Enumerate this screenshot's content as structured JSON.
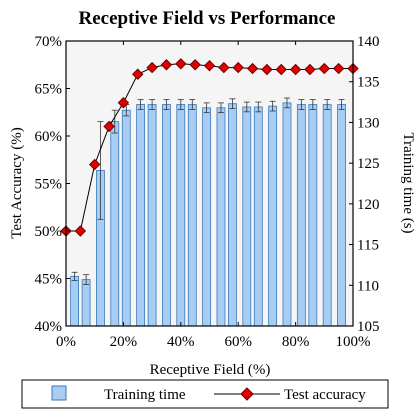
{
  "chart_data": {
    "type": "bar",
    "title": "Receptive Field vs Performance",
    "xlabel": "Receptive Field (%)",
    "ylabel_left": "Test Accuracy (%)",
    "ylabel_right": "Training time (s)",
    "x_ticks": [
      "0%",
      "20%",
      "40%",
      "60%",
      "80%",
      "100%"
    ],
    "x_tick_values": [
      0,
      20,
      40,
      60,
      80,
      100
    ],
    "y_left_ticks": [
      "40%",
      "45%",
      "50%",
      "55%",
      "60%",
      "65%",
      "70%"
    ],
    "y_left_tick_values": [
      40,
      45,
      50,
      55,
      60,
      65,
      70
    ],
    "y_right_ticks": [
      "105",
      "110",
      "115",
      "120",
      "125",
      "130",
      "135",
      "140"
    ],
    "y_right_tick_values": [
      105,
      110,
      115,
      120,
      125,
      130,
      135,
      140
    ],
    "xlim": [
      0,
      100
    ],
    "ylim_left": [
      40,
      70
    ],
    "ylim_right": [
      105,
      140
    ],
    "grid": false,
    "legend_position": "bottom",
    "colors": {
      "bar_fill": "#a8cdf5",
      "bar_stroke": "#3a78b8",
      "line": "#000000",
      "marker_fill": "#e00000",
      "marker_stroke": "#700000",
      "plot_background": "#f5f5f5"
    },
    "series": [
      {
        "name": "Training time",
        "kind": "bar",
        "axis": "right",
        "x": [
          3,
          7,
          12,
          17,
          21,
          26,
          30,
          35,
          40,
          44,
          49,
          54,
          58,
          63,
          67,
          72,
          77,
          82,
          86,
          91,
          96
        ],
        "values": [
          111.1,
          110.7,
          124.1,
          130.1,
          131.5,
          132.2,
          132.2,
          132.2,
          132.2,
          132.2,
          131.8,
          131.8,
          132.3,
          131.9,
          131.9,
          132.0,
          132.4,
          132.2,
          132.2,
          132.2,
          132.2
        ],
        "errors": [
          0.5,
          0.6,
          6.0,
          1.4,
          0.7,
          0.6,
          0.6,
          0.6,
          0.6,
          0.6,
          0.6,
          0.6,
          0.6,
          0.6,
          0.6,
          0.6,
          0.6,
          0.6,
          0.6,
          0.6,
          0.6
        ]
      },
      {
        "name": "Test accuracy",
        "kind": "line",
        "axis": "left",
        "x": [
          0,
          5,
          10,
          15,
          20,
          25,
          30,
          35,
          40,
          45,
          50,
          55,
          60,
          65,
          70,
          75,
          80,
          85,
          90,
          95,
          100
        ],
        "values": [
          50.0,
          50.0,
          57.0,
          61.0,
          63.5,
          66.5,
          67.2,
          67.5,
          67.6,
          67.5,
          67.4,
          67.2,
          67.2,
          67.1,
          67.0,
          67.0,
          67.0,
          67.0,
          67.1,
          67.1,
          67.1
        ]
      }
    ]
  }
}
